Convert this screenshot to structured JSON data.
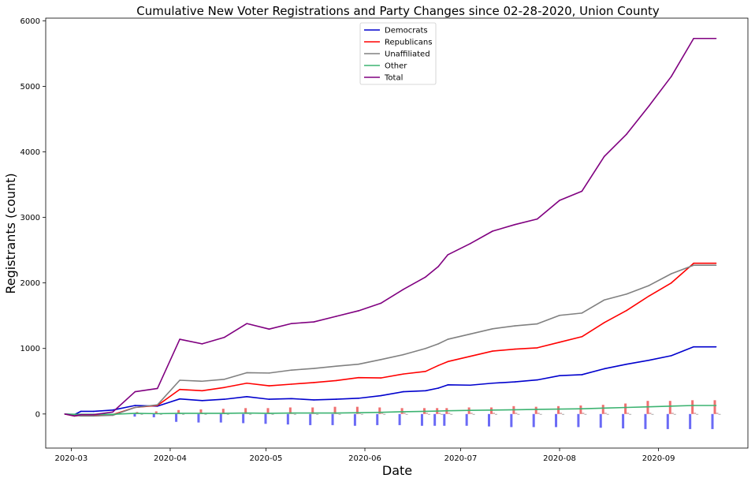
{
  "chart_data": {
    "type": "line",
    "title": "Cumulative New Voter Registrations and Party Changes since 02-28-2020, Union County",
    "xlabel": "Date",
    "ylabel": "Registrants (count)",
    "ylim": [
      -520,
      6040
    ],
    "xlim": [
      "2020-02-22",
      "2020-09-29"
    ],
    "yticks": [
      0,
      1000,
      2000,
      3000,
      4000,
      5000,
      6000
    ],
    "xticks": [
      "2020-03-01",
      "2020-04-01",
      "2020-05-01",
      "2020-06-01",
      "2020-07-01",
      "2020-08-01",
      "2020-09-01"
    ],
    "xtick_labels": [
      "2020-03",
      "2020-04",
      "2020-05",
      "2020-06",
      "2020-07",
      "2020-08",
      "2020-09"
    ],
    "grid": false,
    "legend_position": "top-center",
    "dates": [
      "2020-02-28",
      "2020-03-02",
      "2020-03-04",
      "2020-03-08",
      "2020-03-14",
      "2020-03-21",
      "2020-03-28",
      "2020-04-04",
      "2020-04-11",
      "2020-04-18",
      "2020-04-25",
      "2020-05-02",
      "2020-05-09",
      "2020-05-16",
      "2020-05-23",
      "2020-05-30",
      "2020-06-06",
      "2020-06-13",
      "2020-06-20",
      "2020-06-24",
      "2020-06-27",
      "2020-07-04",
      "2020-07-11",
      "2020-07-18",
      "2020-07-25",
      "2020-08-01",
      "2020-08-08",
      "2020-08-15",
      "2020-08-22",
      "2020-08-29",
      "2020-09-05",
      "2020-09-12",
      "2020-09-19"
    ],
    "series": [
      {
        "name": "Democrats",
        "color": "#0000cd",
        "values": [
          0,
          -10,
          40,
          40,
          60,
          130,
          120,
          230,
          205,
          225,
          265,
          225,
          235,
          215,
          225,
          240,
          280,
          340,
          355,
          395,
          445,
          440,
          470,
          490,
          520,
          585,
          600,
          690,
          760,
          820,
          890,
          1025,
          1025
        ]
      },
      {
        "name": "Republicans",
        "color": "#ff0000",
        "values": [
          0,
          -30,
          -20,
          -20,
          -10,
          100,
          130,
          375,
          355,
          405,
          470,
          430,
          455,
          480,
          510,
          555,
          550,
          610,
          650,
          740,
          800,
          880,
          960,
          990,
          1010,
          1095,
          1180,
          1395,
          1580,
          1800,
          2000,
          2300,
          2300
        ]
      },
      {
        "name": "Unaffiliated",
        "color": "#808080",
        "values": [
          0,
          -20,
          -30,
          -30,
          -20,
          100,
          140,
          515,
          500,
          530,
          630,
          625,
          670,
          695,
          730,
          760,
          830,
          905,
          1000,
          1070,
          1140,
          1220,
          1300,
          1345,
          1375,
          1505,
          1540,
          1740,
          1830,
          1960,
          2140,
          2270,
          2270
        ]
      },
      {
        "name": "Other",
        "color": "#3cb371",
        "values": [
          0,
          -5,
          -5,
          -5,
          -5,
          10,
          5,
          10,
          10,
          10,
          15,
          10,
          15,
          15,
          15,
          20,
          25,
          35,
          40,
          45,
          50,
          55,
          60,
          65,
          70,
          75,
          80,
          90,
          100,
          110,
          120,
          130,
          130
        ]
      },
      {
        "name": "Total",
        "color": "#800080",
        "values": [
          0,
          -30,
          -10,
          -10,
          30,
          340,
          390,
          1140,
          1070,
          1170,
          1380,
          1295,
          1380,
          1405,
          1490,
          1575,
          1690,
          1900,
          2090,
          2250,
          2430,
          2600,
          2790,
          2890,
          2975,
          3260,
          3400,
          3930,
          4270,
          4700,
          5150,
          5730,
          5730
        ]
      }
    ],
    "change_bars": {
      "dates": [
        "2020-03-22",
        "2020-03-28",
        "2020-04-04",
        "2020-04-11",
        "2020-04-18",
        "2020-04-25",
        "2020-05-02",
        "2020-05-09",
        "2020-05-16",
        "2020-05-23",
        "2020-05-30",
        "2020-06-06",
        "2020-06-13",
        "2020-06-20",
        "2020-06-24",
        "2020-06-27",
        "2020-07-04",
        "2020-07-11",
        "2020-07-18",
        "2020-07-25",
        "2020-08-01",
        "2020-08-08",
        "2020-08-15",
        "2020-08-22",
        "2020-08-29",
        "2020-09-05",
        "2020-09-12",
        "2020-09-19"
      ],
      "series": [
        {
          "color": "#6a6af5",
          "values": [
            -40,
            -50,
            -120,
            -130,
            -130,
            -140,
            -150,
            -160,
            -170,
            -170,
            -180,
            -170,
            -170,
            -180,
            -180,
            -180,
            -180,
            -190,
            -200,
            -200,
            -200,
            -200,
            -210,
            -220,
            -230,
            -230,
            -230,
            -230
          ]
        },
        {
          "color": "#ef7070",
          "values": [
            30,
            40,
            60,
            70,
            80,
            90,
            90,
            100,
            100,
            110,
            110,
            100,
            90,
            90,
            90,
            90,
            100,
            100,
            120,
            110,
            120,
            130,
            140,
            160,
            200,
            200,
            210,
            210
          ]
        },
        {
          "color": "#d9aaaa",
          "values": [
            10,
            10,
            15,
            15,
            20,
            20,
            20,
            20,
            20,
            20,
            20,
            20,
            20,
            20,
            20,
            20,
            20,
            20,
            20,
            20,
            20,
            20,
            20,
            20,
            20,
            20,
            20,
            20
          ]
        },
        {
          "color": "#999999",
          "values": [
            -10,
            -10,
            -10,
            -10,
            -10,
            -10,
            -10,
            -10,
            -10,
            -10,
            -10,
            -10,
            -10,
            -10,
            -10,
            -10,
            -10,
            -10,
            -10,
            -10,
            -10,
            -10,
            -10,
            -10,
            -10,
            -10,
            -10,
            -10
          ]
        }
      ]
    }
  }
}
